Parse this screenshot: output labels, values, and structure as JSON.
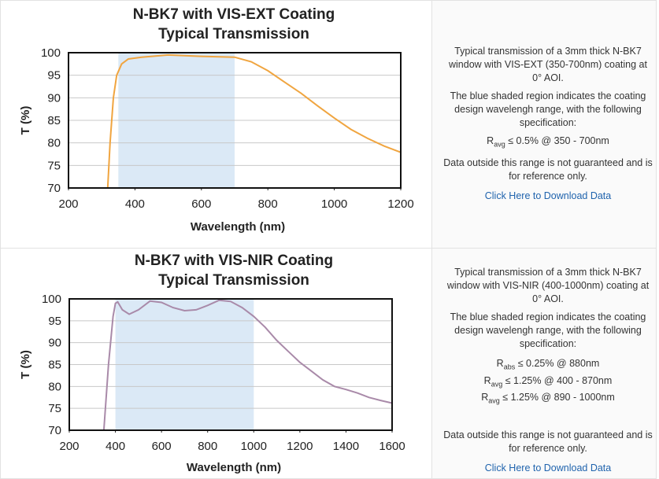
{
  "chart_data": [
    {
      "type": "line",
      "title": "N-BK7 with VIS-EXT Coating",
      "subtitle": "Typical Transmission",
      "x_label": "Wavelength (nm)",
      "y_label": "T (%)",
      "xlim": [
        200,
        1200
      ],
      "xticks": [
        200,
        400,
        600,
        800,
        1000,
        1200
      ],
      "ylim": [
        70,
        100
      ],
      "yticks": [
        70,
        75,
        80,
        85,
        90,
        95,
        100
      ],
      "grid": true,
      "shaded_range": [
        350,
        700
      ],
      "shade_color": "#dbe9f6",
      "series": [
        {
          "color": "#f0a540",
          "x": [
            318,
            325,
            335,
            345,
            360,
            380,
            420,
            500,
            600,
            700,
            750,
            800,
            850,
            900,
            950,
            1000,
            1050,
            1100,
            1150,
            1200
          ],
          "values": [
            70,
            80,
            90,
            95,
            97.5,
            98.6,
            99,
            99.5,
            99.2,
            99,
            98,
            96,
            93.5,
            91,
            88.2,
            85.5,
            83,
            81,
            79.3,
            77.9
          ]
        }
      ]
    },
    {
      "type": "line",
      "title": "N-BK7 with VIS-NIR Coating",
      "subtitle": "Typical Transmission",
      "x_label": "Wavelength (nm)",
      "y_label": "T (%)",
      "xlim": [
        200,
        1600
      ],
      "xticks": [
        200,
        400,
        600,
        800,
        1000,
        1200,
        1400,
        1600
      ],
      "ylim": [
        70,
        100
      ],
      "yticks": [
        70,
        75,
        80,
        85,
        90,
        95,
        100
      ],
      "grid": true,
      "shaded_range": [
        400,
        1000
      ],
      "shade_color": "#dbe9f6",
      "series": [
        {
          "color": "#a98aa9",
          "x": [
            350,
            370,
            390,
            400,
            410,
            430,
            460,
            500,
            550,
            600,
            650,
            700,
            750,
            800,
            850,
            900,
            950,
            1000,
            1050,
            1100,
            1150,
            1200,
            1250,
            1300,
            1350,
            1400,
            1450,
            1500,
            1550,
            1600
          ],
          "values": [
            70,
            85,
            96,
            99,
            99.3,
            97.5,
            96.5,
            97.5,
            99.5,
            99.2,
            98,
            97.3,
            97.5,
            98.5,
            99.7,
            99.4,
            98,
            96,
            93.5,
            90.5,
            88,
            85.5,
            83.5,
            81.5,
            80,
            79.3,
            78.5,
            77.5,
            76.8,
            76.2
          ]
        }
      ]
    }
  ],
  "panels": [
    {
      "paragraphs": [
        "Typical transmission of a 3mm thick N-BK7 window with VIS-EXT (350-700nm) coating at 0° AOI.",
        "The blue shaded region indicates the coating design wavelengh range, with the following specification:"
      ],
      "specs": [
        {
          "symbol": "R",
          "sub": "avg",
          "text": "≤ 0.5% @ 350 - 700nm"
        }
      ],
      "note": "Data outside this range is not guaranteed and is for reference only.",
      "link": "Click Here to Download Data"
    },
    {
      "paragraphs": [
        "Typical transmission of a 3mm thick N-BK7 window with VIS-NIR (400-1000nm) coating at 0° AOI.",
        "The blue shaded region indicates the coating design wavelengh range, with the following specification:"
      ],
      "specs": [
        {
          "symbol": "R",
          "sub": "abs",
          "text": "≤ 0.25% @ 880nm"
        },
        {
          "symbol": "R",
          "sub": "avg",
          "text": "≤ 1.25% @ 400 - 870nm"
        },
        {
          "symbol": "R",
          "sub": "avg",
          "text": "≤ 1.25% @ 890 - 1000nm"
        }
      ],
      "note": "Data outside this range is not guaranteed and is for reference only.",
      "link": "Click Here to Download Data"
    }
  ]
}
